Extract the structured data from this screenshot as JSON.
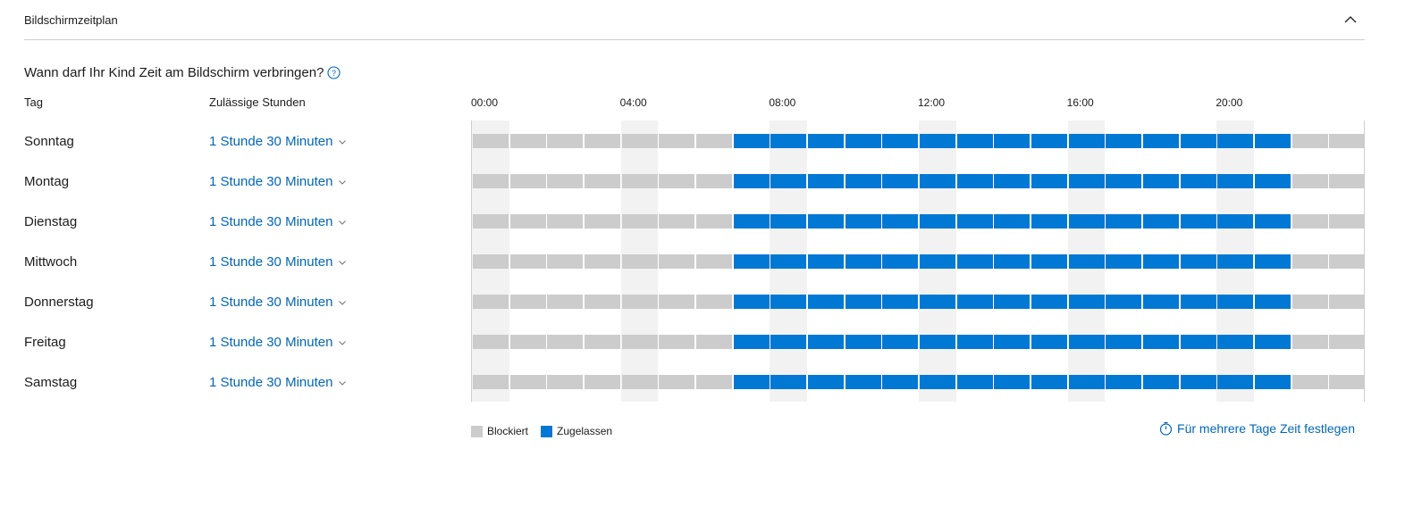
{
  "section": {
    "title": "Bildschirmzeitplan"
  },
  "question": "Wann darf Ihr Kind Zeit am Bildschirm verbringen?",
  "columns": {
    "day": "Tag",
    "hours": "Zulässige Stunden"
  },
  "time_ticks": [
    "00:00",
    "04:00",
    "08:00",
    "12:00",
    "16:00",
    "20:00"
  ],
  "days": [
    {
      "name": "Sonntag",
      "hours": "1 Stunde 30 Minuten"
    },
    {
      "name": "Montag",
      "hours": "1 Stunde 30 Minuten"
    },
    {
      "name": "Dienstag",
      "hours": "1 Stunde 30 Minuten"
    },
    {
      "name": "Mittwoch",
      "hours": "1 Stunde 30 Minuten"
    },
    {
      "name": "Donnerstag",
      "hours": "1 Stunde 30 Minuten"
    },
    {
      "name": "Freitag",
      "hours": "1 Stunde 30 Minuten"
    },
    {
      "name": "Samstag",
      "hours": "1 Stunde 30 Minuten"
    }
  ],
  "schedule": {
    "allowed_from_hour": 7,
    "allowed_until_hour": 22
  },
  "legend": {
    "blocked": "Blockiert",
    "allowed": "Zugelassen"
  },
  "multi_day_link": "Für mehrere Tage Zeit festlegen",
  "colors": {
    "accent": "#0078d4",
    "link": "#0067b8",
    "blocked": "#cccccc",
    "stripe": "#f2f2f2"
  }
}
